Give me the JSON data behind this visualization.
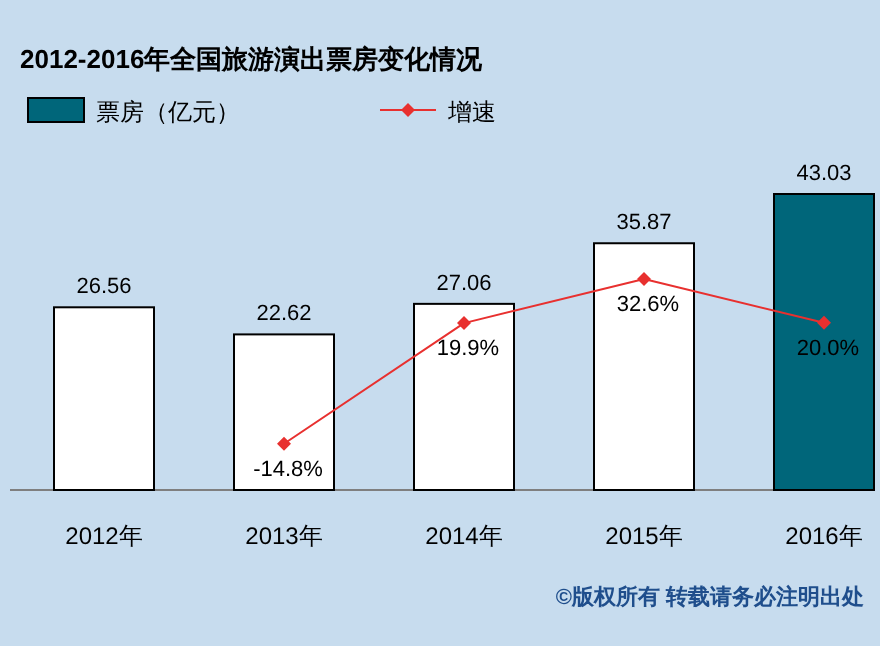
{
  "chart_data": {
    "type": "bar",
    "title": "2012-2016年全国旅游演出票房变化情况",
    "categories": [
      "2012年",
      "2013年",
      "2014年",
      "2015年",
      "2016年"
    ],
    "series": [
      {
        "name": "票房（亿元）",
        "colors": [
          "#ffffff",
          "#ffffff",
          "#ffffff",
          "#ffffff",
          "#00667a"
        ],
        "values": [
          26.56,
          22.62,
          27.06,
          35.87,
          43.03
        ]
      },
      {
        "name": "增速",
        "type": "line",
        "axis": "y2",
        "color": "#e8302f",
        "marker": "diamond",
        "values": [
          null,
          -14.8,
          19.9,
          32.6,
          20.0
        ],
        "value_labels": [
          null,
          "-14.8%",
          "19.9%",
          "32.6%",
          "20.0%"
        ]
      }
    ],
    "data_labels": true,
    "legend": "top",
    "annotations": [
      "©版权所有  转载请务必注明出处"
    ]
  }
}
